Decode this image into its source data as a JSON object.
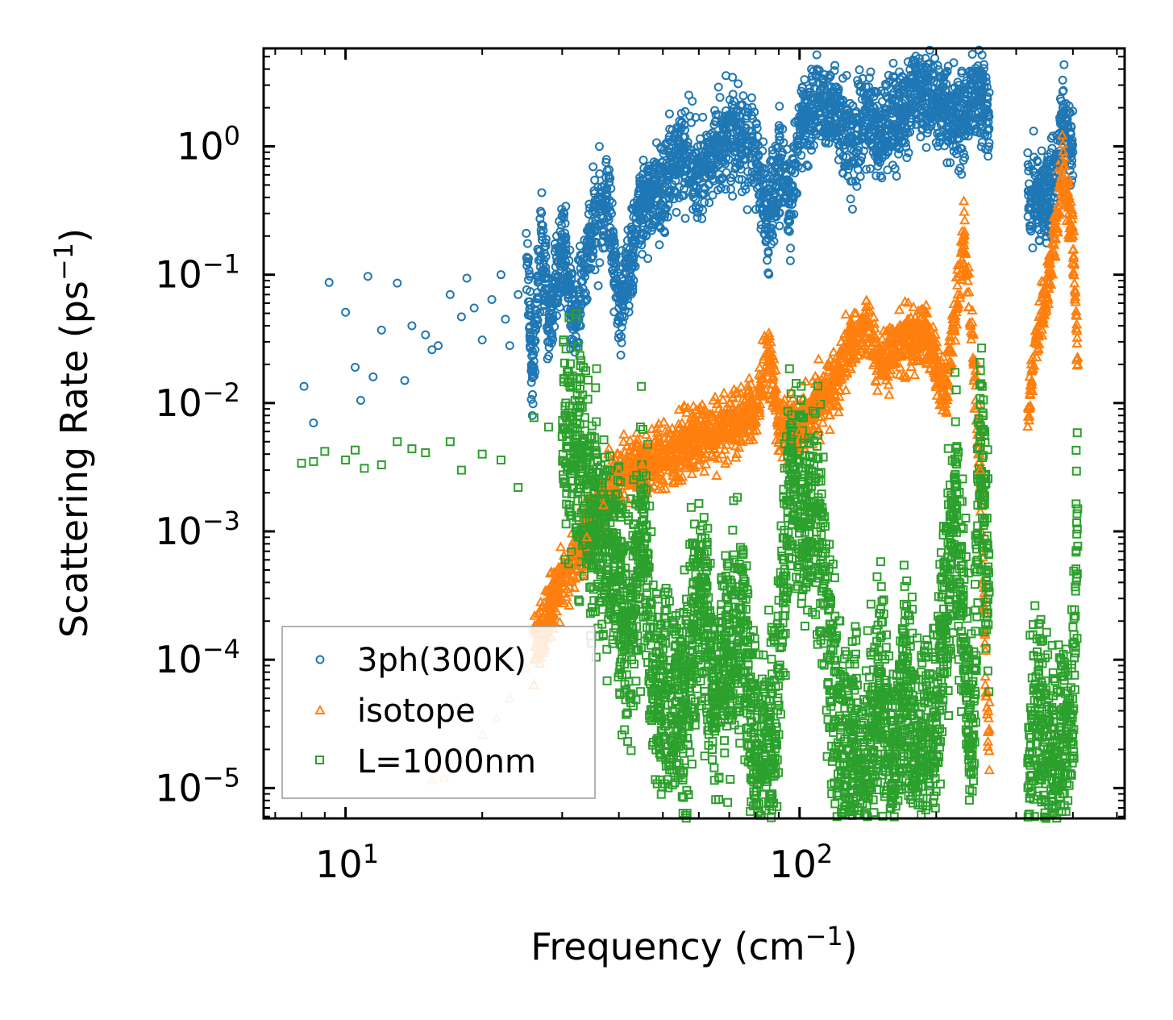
{
  "chart_data": {
    "type": "scatter",
    "xscale": "log",
    "yscale": "log",
    "xlabel": "Frequency (cm",
    "xlabel_sup": "−1",
    "xlabel_end": ")",
    "ylabel": "Scattering Rate (ps",
    "ylabel_sup": "−1",
    "ylabel_end": ")",
    "xlim": [
      6.6,
      520
    ],
    "ylim": [
      5.8e-06,
      5.8
    ],
    "x_ticks": [
      {
        "value": 10,
        "base": "10",
        "exp": "1"
      },
      {
        "value": 100,
        "base": "10",
        "exp": "2"
      }
    ],
    "y_ticks": [
      {
        "value": 1,
        "base": "10",
        "exp": "0"
      },
      {
        "value": 0.1,
        "base": "10",
        "exp": "−1"
      },
      {
        "value": 0.01,
        "base": "10",
        "exp": "−2"
      },
      {
        "value": 0.001,
        "base": "10",
        "exp": "−3"
      },
      {
        "value": 0.0001,
        "base": "10",
        "exp": "−4"
      },
      {
        "value": 1e-05,
        "base": "10",
        "exp": "−5"
      }
    ],
    "legend_position": "lower-left",
    "series": [
      {
        "name": "3ph(300K)",
        "marker": "circle",
        "color": "#1f77b4",
        "points": [
          [
            8.1,
            0.0135
          ],
          [
            8.5,
            0.007
          ],
          [
            9.2,
            0.087
          ],
          [
            10,
            0.051
          ],
          [
            10.5,
            0.019
          ],
          [
            10.8,
            0.0105
          ],
          [
            11.2,
            0.097
          ],
          [
            11.5,
            0.016
          ],
          [
            12,
            0.037
          ],
          [
            13,
            0.086
          ],
          [
            13.5,
            0.015
          ],
          [
            14,
            0.04
          ],
          [
            15,
            0.034
          ],
          [
            15.5,
            0.026
          ],
          [
            16,
            0.028
          ],
          [
            17,
            0.07
          ],
          [
            18,
            0.047
          ],
          [
            18.5,
            0.094
          ],
          [
            19.2,
            0.055
          ],
          [
            20,
            0.031
          ],
          [
            21,
            0.064
          ],
          [
            22,
            0.1
          ],
          [
            22.5,
            0.045
          ],
          [
            23,
            0.028
          ],
          [
            24,
            0.07
          ],
          [
            25,
            0.21
          ],
          [
            25.8,
            0.0157
          ],
          [
            27,
            0.21
          ],
          [
            28,
            0.039
          ],
          [
            30,
            0.18
          ],
          [
            32,
            0.04
          ],
          [
            35,
            0.26
          ],
          [
            38,
            0.34
          ],
          [
            40,
            0.055
          ],
          [
            45,
            0.38
          ],
          [
            50,
            0.46
          ],
          [
            55,
            0.9
          ],
          [
            60,
            0.6
          ],
          [
            70,
            1.4
          ],
          [
            80,
            0.9
          ],
          [
            85,
            0.22
          ],
          [
            90,
            0.75
          ],
          [
            95,
            0.3
          ],
          [
            100,
            1.5
          ],
          [
            110,
            2.2
          ],
          [
            120,
            1.9
          ],
          [
            130,
            0.95
          ],
          [
            140,
            1.6
          ],
          [
            150,
            1.2
          ],
          [
            170,
            2.0
          ],
          [
            180,
            2.9
          ],
          [
            200,
            2.2
          ],
          [
            230,
            1.5
          ],
          [
            240,
            3.1
          ],
          [
            250,
            2.2
          ],
          [
            320,
            0.45
          ],
          [
            350,
            0.4
          ],
          [
            370,
            0.75
          ],
          [
            380,
            1.8
          ],
          [
            400,
            0.9
          ]
        ]
      },
      {
        "name": "isotope",
        "marker": "triangle",
        "color": "#ff7f0e",
        "points": [
          [
            15.5,
            1.15e-05
          ],
          [
            16.5,
            1.2e-05
          ],
          [
            17.5,
            1.5e-05
          ],
          [
            18.5,
            1.9e-05
          ],
          [
            20,
            2.6e-05
          ],
          [
            21.5,
            3.5e-05
          ],
          [
            23,
            5e-05
          ],
          [
            25,
            8.5e-05
          ],
          [
            27,
            0.00018
          ],
          [
            28.5,
            0.0003
          ],
          [
            30,
            0.00042
          ],
          [
            32,
            0.0006
          ],
          [
            34,
            0.0009
          ],
          [
            37,
            0.0016
          ],
          [
            40,
            0.003
          ],
          [
            45,
            0.0033
          ],
          [
            50,
            0.004
          ],
          [
            55,
            0.0045
          ],
          [
            60,
            0.0055
          ],
          [
            70,
            0.0065
          ],
          [
            80,
            0.009
          ],
          [
            85,
            0.025
          ],
          [
            90,
            0.007
          ],
          [
            100,
            0.006
          ],
          [
            110,
            0.01
          ],
          [
            120,
            0.015
          ],
          [
            130,
            0.03
          ],
          [
            140,
            0.045
          ],
          [
            150,
            0.02
          ],
          [
            170,
            0.03
          ],
          [
            190,
            0.035
          ],
          [
            210,
            0.012
          ],
          [
            230,
            0.2
          ],
          [
            240,
            0.035
          ],
          [
            250,
            0.003
          ],
          [
            260,
            2.3e-05
          ],
          [
            320,
            0.009
          ],
          [
            330,
            0.03
          ],
          [
            350,
            0.07
          ],
          [
            370,
            0.3
          ],
          [
            380,
            0.7
          ],
          [
            400,
            0.2
          ],
          [
            410,
            0.02
          ]
        ]
      },
      {
        "name": "L=1000nm",
        "marker": "square",
        "color": "#2ca02c",
        "points": [
          [
            8,
            0.0034
          ],
          [
            8.5,
            0.0035
          ],
          [
            9,
            0.0042
          ],
          [
            10,
            0.0036
          ],
          [
            10.5,
            0.0043
          ],
          [
            11,
            0.0031
          ],
          [
            12,
            0.0033
          ],
          [
            13,
            0.005
          ],
          [
            14,
            0.0044
          ],
          [
            15,
            0.0041
          ],
          [
            17,
            0.005
          ],
          [
            18,
            0.003
          ],
          [
            20,
            0.004
          ],
          [
            22,
            0.0036
          ],
          [
            24,
            0.0022
          ],
          [
            26,
            0.0077
          ],
          [
            28,
            0.0065
          ],
          [
            30,
            0.0055
          ],
          [
            32,
            0.0045
          ],
          [
            35,
            0.0012
          ],
          [
            38,
            0.0008
          ],
          [
            40,
            0.00045
          ],
          [
            42,
            0.00013
          ],
          [
            45,
            0.0012
          ],
          [
            48,
            6e-05
          ],
          [
            55,
            3e-05
          ],
          [
            60,
            0.0004
          ],
          [
            65,
            5e-05
          ],
          [
            70,
            0.00011
          ],
          [
            75,
            0.0002
          ],
          [
            80,
            1.7e-05
          ],
          [
            88,
            2.3e-05
          ],
          [
            95,
            0.0025
          ],
          [
            100,
            0.0016
          ],
          [
            110,
            0.0015
          ],
          [
            120,
            3.3e-05
          ],
          [
            130,
            1.6e-05
          ],
          [
            140,
            1.05e-05
          ],
          [
            150,
            8e-05
          ],
          [
            160,
            1.05e-05
          ],
          [
            170,
            6e-05
          ],
          [
            180,
            2e-05
          ],
          [
            200,
            3.7e-05
          ],
          [
            220,
            0.0016
          ],
          [
            235,
            6e-05
          ],
          [
            240,
            1.5e-05
          ],
          [
            250,
            0.0055
          ],
          [
            260,
            0.0005
          ],
          [
            320,
            1.05e-05
          ],
          [
            330,
            4e-05
          ],
          [
            350,
            1.8e-05
          ],
          [
            365,
            1.3e-05
          ],
          [
            380,
            2.1e-05
          ],
          [
            400,
            4e-05
          ],
          [
            410,
            0.0015
          ]
        ]
      }
    ]
  }
}
